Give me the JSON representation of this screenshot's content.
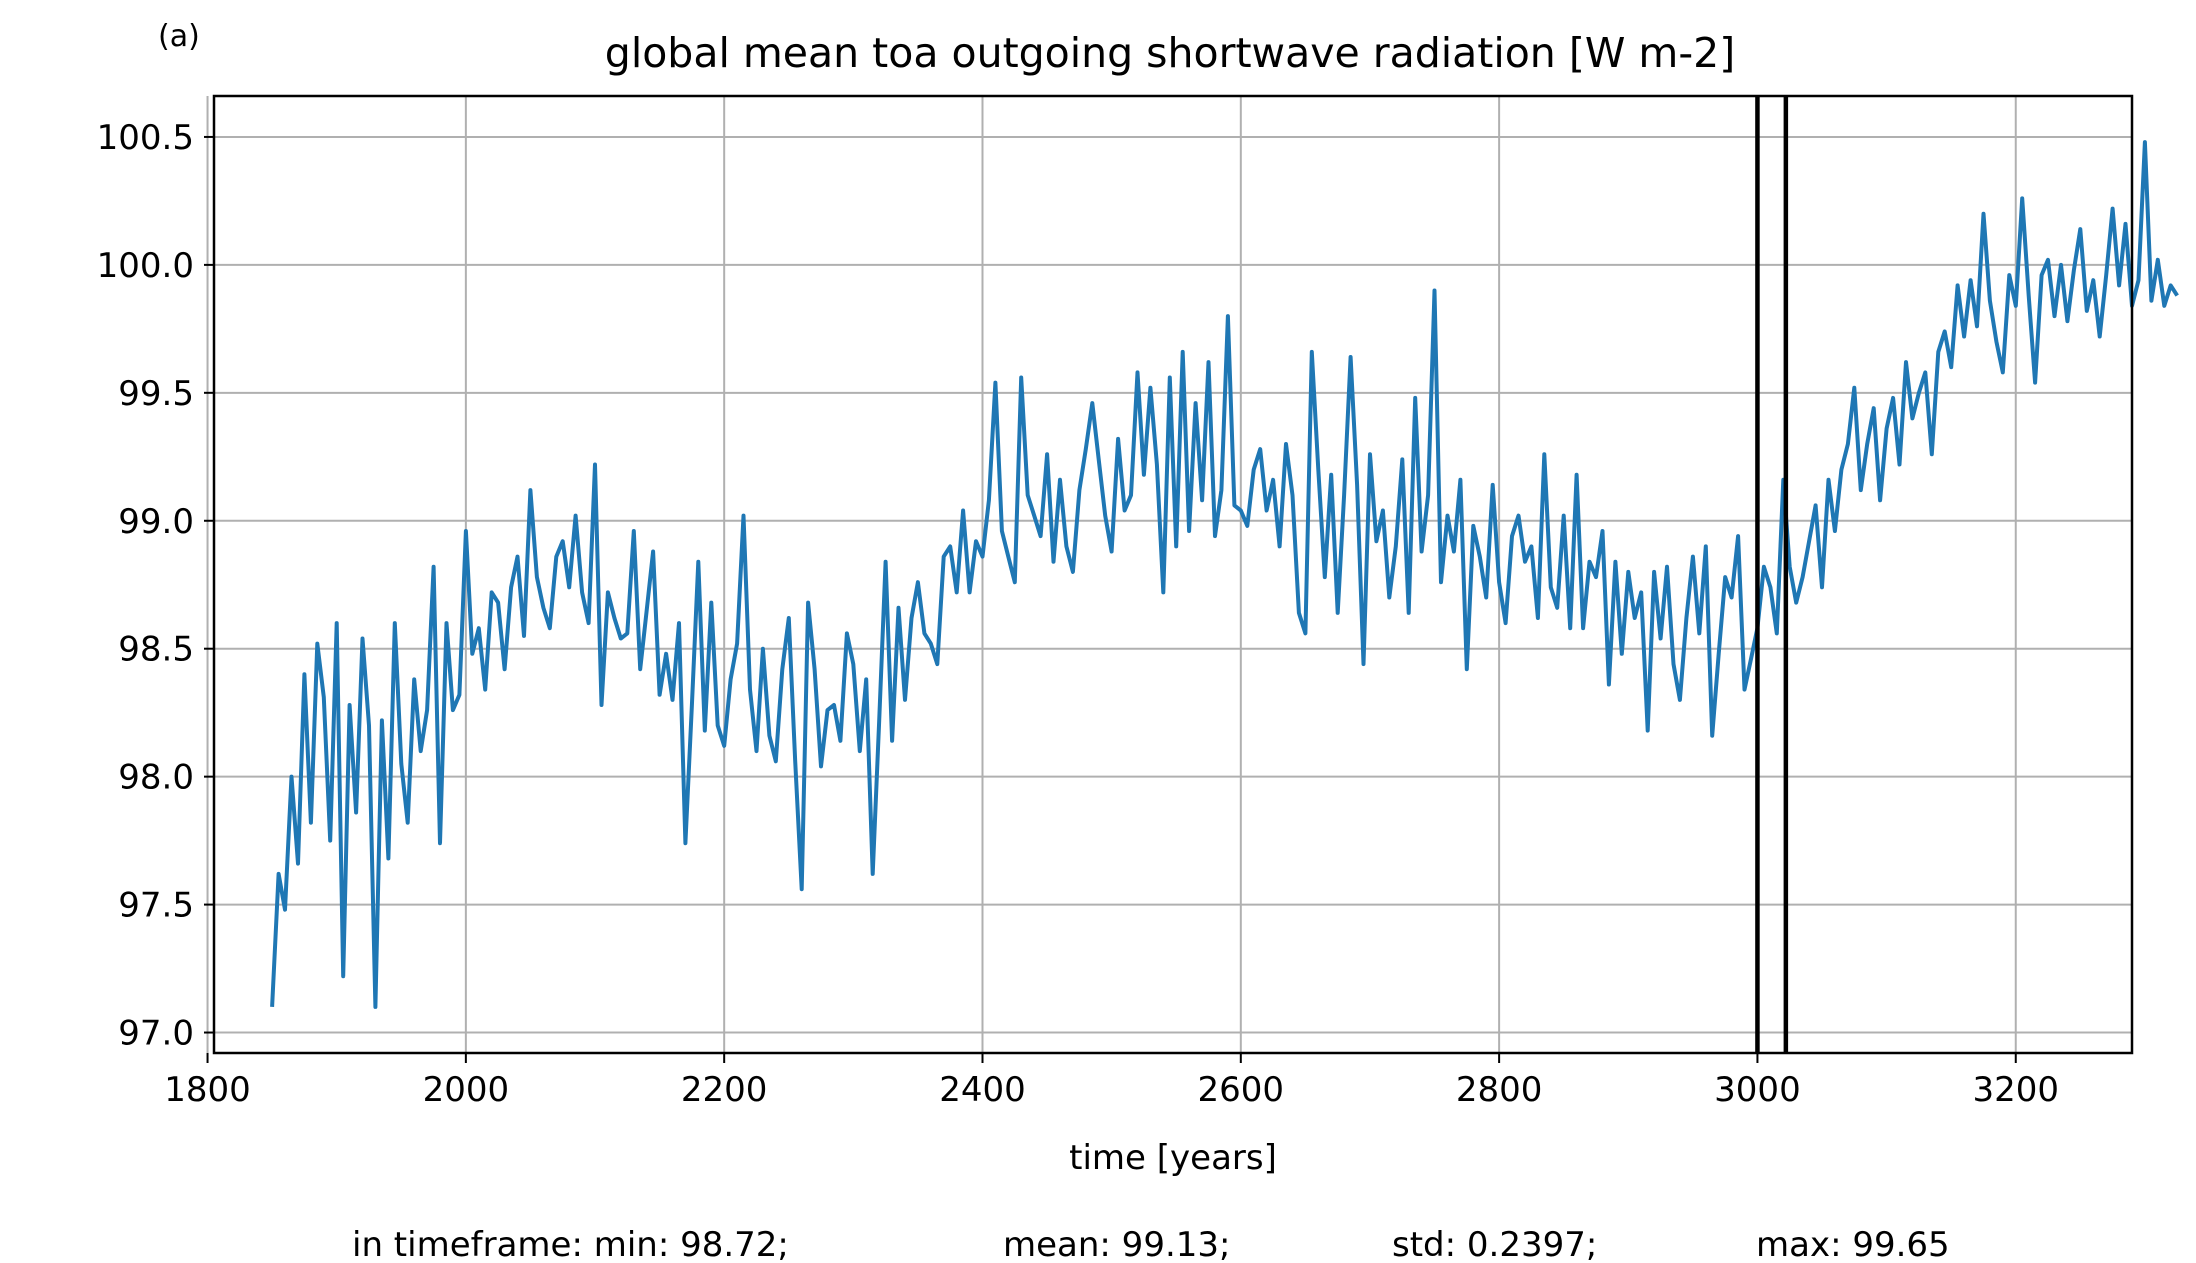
{
  "panel_label": "(a)",
  "chart_data": {
    "type": "line",
    "title": "global mean toa outgoing shortwave radiation [W m-2]",
    "xlabel": "time [years]",
    "ylabel": "",
    "xlim": [
      1805,
      3290
    ],
    "ylim": [
      96.92,
      100.66
    ],
    "xticks": [
      1800,
      2000,
      2200,
      2400,
      2600,
      2800,
      3000,
      3200
    ],
    "yticks": [
      97.0,
      97.5,
      98.0,
      98.5,
      99.0,
      99.5,
      100.0,
      100.5
    ],
    "grid": true,
    "line_color": "#1f77b4",
    "vertical_markers": [
      3000,
      3022
    ],
    "marker_color": "#000000",
    "series": [
      {
        "x_start": 1850,
        "x_step": 5,
        "values": [
          97.1,
          97.62,
          97.48,
          98.0,
          97.66,
          98.4,
          97.82,
          98.52,
          98.31,
          97.75,
          98.6,
          97.22,
          98.28,
          97.86,
          98.54,
          98.2,
          97.1,
          98.22,
          97.68,
          98.6,
          98.05,
          97.82,
          98.38,
          98.1,
          98.26,
          98.82,
          97.74,
          98.6,
          98.26,
          98.32,
          98.96,
          98.48,
          98.58,
          98.34,
          98.72,
          98.68,
          98.42,
          98.74,
          98.86,
          98.55,
          99.12,
          98.78,
          98.66,
          98.58,
          98.86,
          98.92,
          98.74,
          99.02,
          98.72,
          98.6,
          99.22,
          98.28,
          98.72,
          98.62,
          98.54,
          98.56,
          98.96,
          98.42,
          98.65,
          98.88,
          98.32,
          98.48,
          98.3,
          98.6,
          97.74,
          98.28,
          98.84,
          98.18,
          98.68,
          98.2,
          98.12,
          98.38,
          98.52,
          99.02,
          98.34,
          98.1,
          98.5,
          98.16,
          98.06,
          98.42,
          98.62,
          98.06,
          97.56,
          98.68,
          98.42,
          98.04,
          98.26,
          98.28,
          98.14,
          98.56,
          98.44,
          98.1,
          98.38,
          97.62,
          98.22,
          98.84,
          98.14,
          98.66,
          98.3,
          98.62,
          98.76,
          98.56,
          98.52,
          98.44,
          98.86,
          98.9,
          98.72,
          99.04,
          98.72,
          98.92,
          98.86,
          99.08,
          99.54,
          98.96,
          98.86,
          98.76,
          99.56,
          99.1,
          99.02,
          98.94,
          99.26,
          98.84,
          99.16,
          98.9,
          98.8,
          99.12,
          99.28,
          99.46,
          99.24,
          99.02,
          98.88,
          99.32,
          99.04,
          99.1,
          99.58,
          99.18,
          99.52,
          99.22,
          98.72,
          99.56,
          98.9,
          99.66,
          98.96,
          99.46,
          99.08,
          99.62,
          98.94,
          99.12,
          99.8,
          99.06,
          99.04,
          98.98,
          99.2,
          99.28,
          99.04,
          99.16,
          98.9,
          99.3,
          99.1,
          98.64,
          98.56,
          99.66,
          99.2,
          98.78,
          99.18,
          98.64,
          99.1,
          99.64,
          99.14,
          98.44,
          99.26,
          98.92,
          99.04,
          98.7,
          98.9,
          99.24,
          98.64,
          99.48,
          98.88,
          99.1,
          99.9,
          98.76,
          99.02,
          98.88,
          99.16,
          98.42,
          98.98,
          98.86,
          98.7,
          99.14,
          98.76,
          98.6,
          98.94,
          99.02,
          98.84,
          98.9,
          98.62,
          99.26,
          98.74,
          98.66,
          99.02,
          98.58,
          99.18,
          98.58,
          98.84,
          98.78,
          98.96,
          98.36,
          98.84,
          98.48,
          98.8,
          98.62,
          98.72,
          98.18,
          98.8,
          98.54,
          98.82,
          98.44,
          98.3,
          98.62,
          98.86,
          98.56,
          98.9,
          98.16,
          98.48,
          98.78,
          98.7,
          98.94,
          98.34,
          98.46,
          98.58,
          98.82,
          98.74,
          98.56,
          99.16,
          98.82,
          98.68,
          98.78,
          98.92,
          99.06,
          98.74,
          99.16,
          98.96,
          99.2,
          99.3,
          99.52,
          99.12,
          99.3,
          99.44,
          99.08,
          99.36,
          99.48,
          99.22,
          99.62,
          99.4,
          99.5,
          99.58,
          99.26,
          99.66,
          99.74,
          99.6,
          99.92,
          99.72,
          99.94,
          99.76,
          100.2,
          99.86,
          99.7,
          99.58,
          99.96,
          99.84,
          100.26,
          99.88,
          99.54,
          99.96,
          100.02,
          99.8,
          100.0,
          99.78,
          99.98,
          100.14,
          99.82,
          99.94,
          99.72,
          99.96,
          100.22,
          99.92,
          100.16,
          99.84,
          99.94,
          100.48,
          99.86,
          100.02,
          99.84,
          99.92,
          99.88
        ]
      }
    ]
  },
  "stats_line": {
    "min": "in timeframe: min: 98.72;",
    "mean": "mean: 99.13;",
    "std": "std: 0.2397;",
    "max": "max: 99.65"
  }
}
